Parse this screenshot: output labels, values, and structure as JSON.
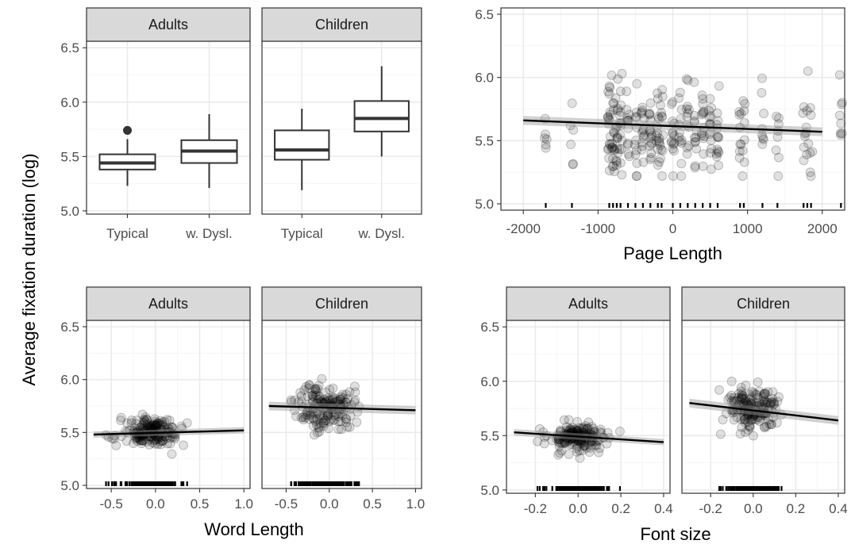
{
  "y_axis_title": "Average fixation duration (log)",
  "chart_data": [
    {
      "id": "group-box",
      "type": "box",
      "facets": [
        "Adults",
        "Children"
      ],
      "xlabel": "",
      "ylabel": "Average fixation duration (log)",
      "ylim": [
        4.97,
        6.56
      ],
      "yticks": [
        5.0,
        5.5,
        6.0,
        6.5
      ],
      "categories": [
        "Typical",
        "w. Dysl."
      ],
      "boxes": [
        {
          "facet": "Adults",
          "category": "Typical",
          "whisker_low": 5.23,
          "q1": 5.38,
          "median": 5.44,
          "q3": 5.52,
          "whisker_high": 5.66,
          "outliers": [
            5.74
          ]
        },
        {
          "facet": "Adults",
          "category": "w. Dysl.",
          "whisker_low": 5.21,
          "q1": 5.44,
          "median": 5.55,
          "q3": 5.65,
          "whisker_high": 5.89,
          "outliers": []
        },
        {
          "facet": "Children",
          "category": "Typical",
          "whisker_low": 5.19,
          "q1": 5.47,
          "median": 5.56,
          "q3": 5.74,
          "whisker_high": 5.94,
          "outliers": []
        },
        {
          "facet": "Children",
          "category": "w. Dysl.",
          "whisker_low": 5.5,
          "q1": 5.73,
          "median": 5.85,
          "q3": 6.01,
          "whisker_high": 6.33,
          "outliers": []
        }
      ]
    },
    {
      "id": "page-length",
      "type": "scatter",
      "facets": [],
      "xlabel": "Page Length",
      "ylabel": "Average fixation duration (log)",
      "xlim": [
        -2300,
        2300
      ],
      "ylim": [
        4.95,
        6.55
      ],
      "xticks": [
        -2000,
        -1000,
        0,
        1000,
        2000
      ],
      "xtick_labels": [
        "-2000",
        "-1000",
        "0",
        "1000",
        "2000"
      ],
      "yticks": [
        5.0,
        5.5,
        6.0,
        6.5
      ],
      "fit": {
        "x": [
          -2000,
          2000
        ],
        "y": [
          5.66,
          5.57
        ],
        "band": 0.035
      },
      "x_clusters": [
        -1700,
        -1350,
        -850,
        -800,
        -750,
        -700,
        -600,
        -500,
        -400,
        -300,
        -200,
        -150,
        0,
        100,
        200,
        300,
        400,
        500,
        600,
        900,
        950,
        1200,
        1400,
        1750,
        1800,
        1850,
        2250
      ],
      "points_per_cluster": [
        6,
        6,
        18,
        16,
        14,
        14,
        12,
        12,
        14,
        16,
        14,
        12,
        14,
        12,
        12,
        12,
        14,
        14,
        14,
        8,
        8,
        8,
        8,
        6,
        6,
        6,
        8
      ],
      "y_center": 5.6,
      "y_spread": 0.3,
      "seed": 11
    },
    {
      "id": "word-length",
      "type": "scatter",
      "facets": [
        "Adults",
        "Children"
      ],
      "xlabel": "Word Length",
      "ylabel": "Average fixation duration (log)",
      "xlim": [
        -0.78,
        1.07
      ],
      "ylim": [
        4.97,
        6.56
      ],
      "xticks": [
        -0.5,
        0.0,
        0.5,
        1.0
      ],
      "xtick_labels": [
        "-0.5",
        "0.0",
        "0.5",
        "1.0"
      ],
      "yticks": [
        5.0,
        5.5,
        6.0,
        6.5
      ],
      "panels": [
        {
          "facet": "Adults",
          "fit": {
            "x": [
              -0.7,
              1.0
            ],
            "y": [
              5.48,
              5.52
            ],
            "band": 0.03
          },
          "n": 190,
          "x_center": -0.05,
          "x_spread": 0.3,
          "y_center": 5.5,
          "y_spread": 0.12,
          "seed": 21
        },
        {
          "facet": "Children",
          "fit": {
            "x": [
              -0.7,
              1.0
            ],
            "y": [
              5.75,
              5.71
            ],
            "band": 0.04
          },
          "n": 170,
          "x_center": -0.05,
          "x_spread": 0.3,
          "y_center": 5.74,
          "y_spread": 0.2,
          "seed": 37
        }
      ]
    },
    {
      "id": "font-size",
      "type": "scatter",
      "facets": [
        "Adults",
        "Children"
      ],
      "xlabel": "Font size",
      "ylabel": "Average fixation duration (log)",
      "xlim": [
        -0.335,
        0.43
      ],
      "ylim": [
        4.97,
        6.56
      ],
      "xticks": [
        -0.2,
        0.0,
        0.2,
        0.4
      ],
      "xtick_labels": [
        "-0.2",
        "0.0",
        "0.2",
        "0.4"
      ],
      "yticks": [
        5.0,
        5.5,
        6.0,
        6.5
      ],
      "panels": [
        {
          "facet": "Adults",
          "fit": {
            "x": [
              -0.3,
              0.4
            ],
            "y": [
              5.53,
              5.44
            ],
            "band": 0.03
          },
          "n": 180,
          "x_center": 0.0,
          "x_spread": 0.13,
          "y_center": 5.48,
          "y_spread": 0.12,
          "seed": 53
        },
        {
          "facet": "Children",
          "fit": {
            "x": [
              -0.3,
              0.4
            ],
            "y": [
              5.8,
              5.64
            ],
            "band": 0.04
          },
          "n": 170,
          "x_center": 0.0,
          "x_spread": 0.13,
          "y_center": 5.74,
          "y_spread": 0.2,
          "seed": 71
        }
      ]
    }
  ]
}
